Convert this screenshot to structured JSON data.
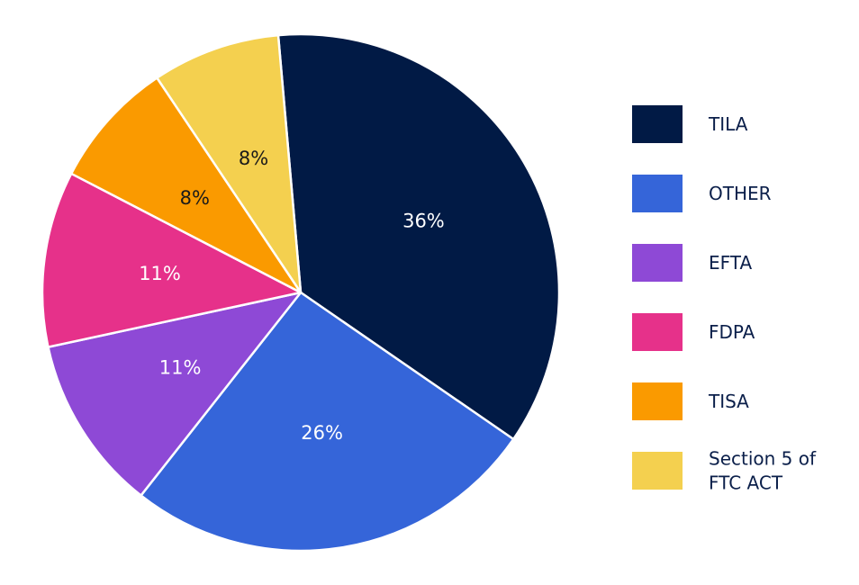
{
  "chart_data": {
    "type": "pie",
    "title": "",
    "categories": [
      "TILA",
      "OTHER",
      "EFTA",
      "FDPA",
      "TISA",
      "Section 5 of FTC ACT"
    ],
    "values": [
      36,
      26,
      11,
      11,
      8,
      8
    ],
    "value_labels": [
      "36%",
      "26%",
      "11%",
      "11%",
      "8%",
      "8%"
    ],
    "colors": [
      "#011a45",
      "#3565d9",
      "#8e49d6",
      "#e6318a",
      "#fa9a00",
      "#f4d04f"
    ],
    "label_colors": [
      "#ffffff",
      "#ffffff",
      "#ffffff",
      "#ffffff",
      "#1a1a1a",
      "#1a1a1a"
    ],
    "start_angle_deg": -5,
    "direction": "clockwise",
    "legend": {
      "position": "right",
      "entries": [
        {
          "lines": [
            "TILA"
          ]
        },
        {
          "lines": [
            "OTHER"
          ]
        },
        {
          "lines": [
            "EFTA"
          ]
        },
        {
          "lines": [
            "FDPA"
          ]
        },
        {
          "lines": [
            "TISA"
          ]
        },
        {
          "lines": [
            "Section 5 of",
            "FTC ACT"
          ]
        }
      ]
    }
  }
}
